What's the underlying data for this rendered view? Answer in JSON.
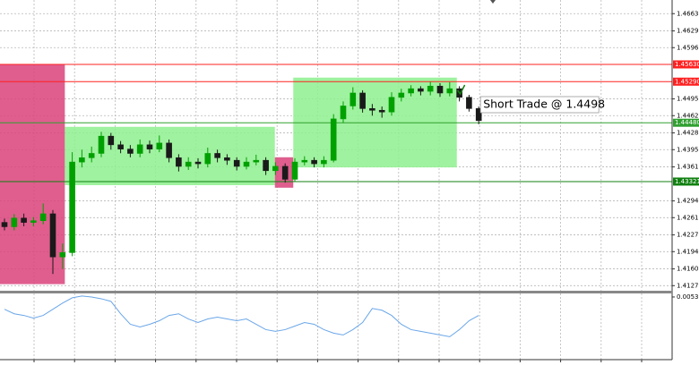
{
  "chart_data": {
    "type": "candlestick",
    "open": [
      1.42516,
      1.42431,
      1.42601,
      1.42516,
      1.4255,
      1.42686,
      1.41836,
      1.41921,
      1.43706,
      1.43791,
      1.43876,
      1.44216,
      1.44046,
      1.43961,
      1.43876,
      1.44046,
      1.43961,
      1.4408,
      1.43791,
      1.43621,
      1.43706,
      1.43672,
      1.43876,
      1.43791,
      1.4374,
      1.43621,
      1.43706,
      1.4374,
      1.43536,
      1.43621,
      1.43366,
      1.43706,
      1.4374,
      1.43672,
      1.4374,
      1.44556,
      1.44811,
      1.45066,
      1.4476,
      1.44726,
      1.44692,
      1.44981,
      1.45066,
      1.45151,
      1.451,
      1.45202,
      1.45066,
      1.45151,
      1.44981,
      1.4476
    ],
    "high": [
      1.4259,
      1.4268,
      1.4269,
      1.4262,
      1.4289,
      1.4276,
      1.421,
      1.439,
      1.4395,
      1.4401,
      1.443,
      1.4428,
      1.4412,
      1.4404,
      1.4415,
      1.4413,
      1.4423,
      1.4415,
      1.4386,
      1.438,
      1.4378,
      1.4399,
      1.4395,
      1.4386,
      1.438,
      1.438,
      1.4385,
      1.438,
      1.437,
      1.4368,
      1.4378,
      1.4382,
      1.438,
      1.4382,
      1.4465,
      1.449,
      1.4518,
      1.4512,
      1.4485,
      1.448,
      1.4508,
      1.4515,
      1.4522,
      1.452,
      1.4529,
      1.4526,
      1.4528,
      1.452,
      1.4503,
      1.448
    ],
    "low": [
      1.4236,
      1.4236,
      1.4244,
      1.4244,
      1.4248,
      1.415,
      1.416,
      1.4185,
      1.436,
      1.437,
      1.438,
      1.4395,
      1.4388,
      1.438,
      1.438,
      1.4388,
      1.439,
      1.437,
      1.4352,
      1.4355,
      1.4358,
      1.436,
      1.437,
      1.4365,
      1.4354,
      1.4356,
      1.4364,
      1.4345,
      1.4345,
      1.433,
      1.4332,
      1.4364,
      1.436,
      1.436,
      1.437,
      1.4448,
      1.4474,
      1.4468,
      1.4462,
      1.4458,
      1.4462,
      1.449,
      1.45,
      1.4502,
      1.4502,
      1.4499,
      1.45,
      1.449,
      1.447,
      1.4445
    ],
    "close": [
      1.42431,
      1.42601,
      1.42516,
      1.4255,
      1.42686,
      1.41836,
      1.41921,
      1.43706,
      1.43791,
      1.43876,
      1.44216,
      1.44046,
      1.43961,
      1.43876,
      1.44046,
      1.43961,
      1.4408,
      1.43791,
      1.43621,
      1.43706,
      1.43672,
      1.43876,
      1.43791,
      1.4374,
      1.43621,
      1.43706,
      1.4374,
      1.43536,
      1.43621,
      1.43366,
      1.43706,
      1.4374,
      1.43672,
      1.4374,
      1.44556,
      1.44811,
      1.45066,
      1.4476,
      1.44726,
      1.44692,
      1.44981,
      1.45066,
      1.45151,
      1.451,
      1.45202,
      1.45066,
      1.45151,
      1.44981,
      1.4476,
      1.44522
    ],
    "up_color": "#00a000",
    "down_color": "#1a1a1a",
    "ylim": [
      1.41152,
      1.46899
    ],
    "yticks": [
      {
        "value": 1.4663,
        "label": "1.46630"
      },
      {
        "value": 1.4629,
        "label": "1.46290"
      },
      {
        "value": 1.4596,
        "label": "1.45960"
      },
      {
        "value": 1.4495,
        "label": "1.44950"
      },
      {
        "value": 1.4462,
        "label": "1.44620"
      },
      {
        "value": 1.4428,
        "label": "1.44280"
      },
      {
        "value": 1.4395,
        "label": "1.43950"
      },
      {
        "value": 1.4361,
        "label": "1.43610"
      },
      {
        "value": 1.4294,
        "label": "1.42940"
      },
      {
        "value": 1.4261,
        "label": "1.42610"
      },
      {
        "value": 1.4227,
        "label": "1.42270"
      },
      {
        "value": 1.4194,
        "label": "1.41940"
      },
      {
        "value": 1.416,
        "label": "1.41600"
      },
      {
        "value": 1.4127,
        "label": "1.41270"
      }
    ],
    "grid": true,
    "levels": [
      {
        "value": 1.4563,
        "label": "1.45630",
        "color": "#ff2020"
      },
      {
        "value": 1.4529,
        "label": "1.45290",
        "color": "#ff2020"
      },
      {
        "value": 1.4448,
        "label": "1.44480",
        "color": "#30a030"
      },
      {
        "value": 1.43321,
        "label": "1.43321",
        "color": "#108010"
      }
    ],
    "zones": [
      {
        "from": 0,
        "to": 6.7,
        "top": 1.4563,
        "bottom": 1.413,
        "color": "#d9427a"
      },
      {
        "from": 6.7,
        "to": 28.4,
        "top": 1.444,
        "bottom": 1.4325,
        "color": "#8ef08e"
      },
      {
        "from": 28.4,
        "to": 30.3,
        "top": 1.438,
        "bottom": 1.432,
        "color": "#d9427a"
      },
      {
        "from": 30.3,
        "to": 47.2,
        "top": 1.4537,
        "bottom": 1.436,
        "color": "#8ef08e"
      }
    ],
    "annotation": "Short Trade @ 1.4498",
    "indicator": {
      "color": "#6aa6e8",
      "ylim": [
        0,
        0.0056
      ],
      "yticks": [
        {
          "value": 0.0053,
          "label": "0.0053"
        }
      ],
      "values": [
        0.00426,
        0.00388,
        0.00374,
        0.00351,
        0.00374,
        0.00426,
        0.00478,
        0.00523,
        0.00538,
        0.0053,
        0.00515,
        0.00493,
        0.00388,
        0.00299,
        0.00276,
        0.00299,
        0.00329,
        0.00374,
        0.00388,
        0.00344,
        0.00314,
        0.00344,
        0.00359,
        0.00344,
        0.00329,
        0.00344,
        0.00299,
        0.00254,
        0.00239,
        0.00254,
        0.00284,
        0.00314,
        0.00299,
        0.00254,
        0.00224,
        0.00209,
        0.00254,
        0.00314,
        0.00433,
        0.00418,
        0.00374,
        0.00299,
        0.00254,
        0.00239,
        0.00224,
        0.00209,
        0.00194,
        0.00254,
        0.00329,
        0.00374
      ]
    }
  }
}
